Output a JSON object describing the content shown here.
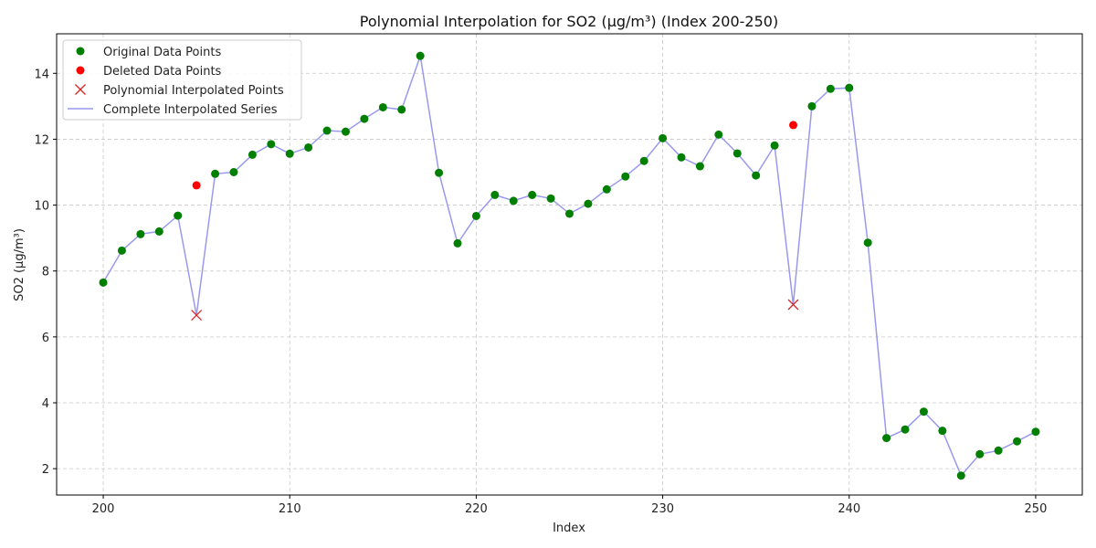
{
  "chart_data": {
    "type": "line",
    "title": "Polynomial Interpolation for SO2 (µg/m³) (Index 200-250)",
    "xlabel": "Index",
    "ylabel": "SO2 (µg/m³)",
    "xlim": [
      197.5,
      252.5
    ],
    "ylim": [
      1.2,
      15.2
    ],
    "xticks": [
      200,
      210,
      220,
      230,
      240,
      250
    ],
    "yticks": [
      2,
      4,
      6,
      8,
      10,
      12,
      14
    ],
    "grid": true,
    "legend_position": "top-left",
    "legend": [
      {
        "key": "original",
        "label": "Original Data Points",
        "marker": "circle",
        "color": "#007f00"
      },
      {
        "key": "deleted",
        "label": "Deleted Data Points",
        "marker": "circle",
        "color": "#ff0000"
      },
      {
        "key": "interp",
        "label": "Polynomial Interpolated Points",
        "marker": "x",
        "color": "#d62728"
      },
      {
        "key": "complete",
        "label": "Complete Interpolated Series",
        "marker": "line",
        "color": "#9999ee"
      }
    ],
    "series": [
      {
        "key": "original",
        "x": [
          200,
          201,
          202,
          203,
          204,
          206,
          207,
          208,
          209,
          210,
          211,
          212,
          213,
          214,
          215,
          216,
          217,
          218,
          219,
          220,
          221,
          222,
          223,
          224,
          225,
          226,
          227,
          228,
          229,
          230,
          231,
          232,
          233,
          234,
          235,
          236,
          238,
          239,
          240,
          241,
          242,
          243,
          244,
          245,
          246,
          247,
          248,
          249,
          250
        ],
        "y": [
          7.65,
          8.62,
          9.12,
          9.2,
          9.68,
          10.95,
          11.0,
          11.53,
          11.85,
          11.56,
          11.75,
          12.26,
          12.23,
          12.62,
          12.97,
          12.9,
          14.53,
          10.98,
          8.84,
          9.67,
          10.31,
          10.13,
          10.31,
          10.2,
          9.74,
          10.04,
          10.48,
          10.87,
          11.34,
          12.03,
          11.45,
          11.18,
          12.14,
          11.57,
          10.9,
          11.81,
          13.0,
          13.53,
          13.56,
          8.86,
          2.93,
          3.19,
          3.73,
          3.15,
          1.79,
          2.44,
          2.55,
          2.83,
          3.12
        ]
      },
      {
        "key": "deleted",
        "x": [
          205,
          237
        ],
        "y": [
          10.6,
          12.43
        ]
      },
      {
        "key": "interp",
        "x": [
          205,
          237
        ],
        "y": [
          6.66,
          6.98
        ]
      },
      {
        "key": "complete",
        "x": [
          200,
          201,
          202,
          203,
          204,
          205,
          206,
          207,
          208,
          209,
          210,
          211,
          212,
          213,
          214,
          215,
          216,
          217,
          218,
          219,
          220,
          221,
          222,
          223,
          224,
          225,
          226,
          227,
          228,
          229,
          230,
          231,
          232,
          233,
          234,
          235,
          236,
          237,
          238,
          239,
          240,
          241,
          242,
          243,
          244,
          245,
          246,
          247,
          248,
          249,
          250
        ],
        "y": [
          7.65,
          8.62,
          9.12,
          9.2,
          9.68,
          6.66,
          10.95,
          11.0,
          11.53,
          11.85,
          11.56,
          11.75,
          12.26,
          12.23,
          12.62,
          12.97,
          12.9,
          14.53,
          10.98,
          8.84,
          9.67,
          10.31,
          10.13,
          10.31,
          10.2,
          9.74,
          10.04,
          10.48,
          10.87,
          11.34,
          12.03,
          11.45,
          11.18,
          12.14,
          11.57,
          10.9,
          11.81,
          6.98,
          13.0,
          13.53,
          13.56,
          8.86,
          2.93,
          3.19,
          3.73,
          3.15,
          1.79,
          2.44,
          2.55,
          2.83,
          3.12
        ]
      }
    ]
  }
}
